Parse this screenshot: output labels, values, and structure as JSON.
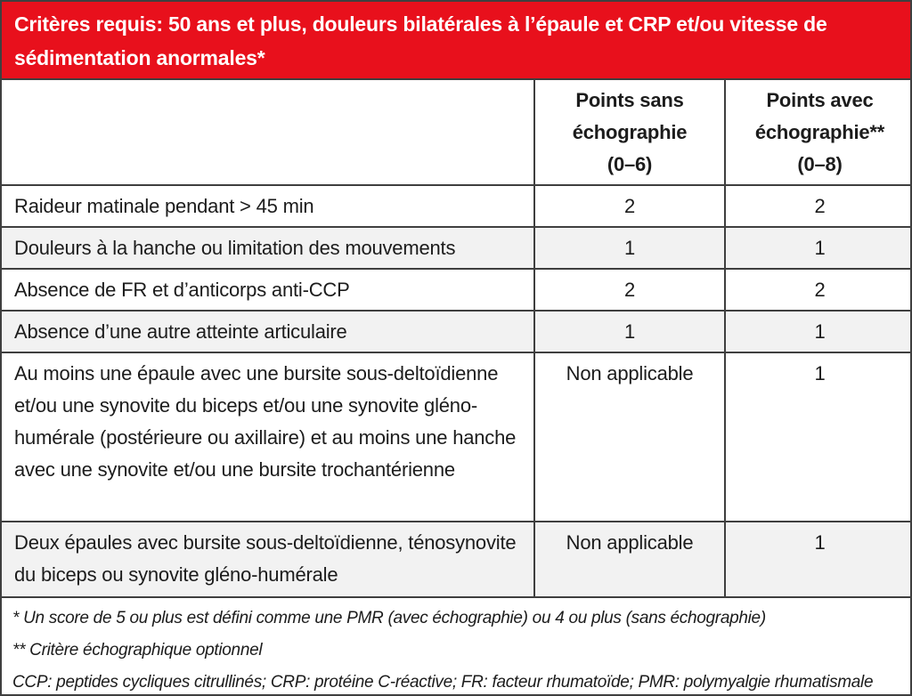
{
  "banner": {
    "title": "Critères requis: 50 ans et plus, douleurs bilatérales à l’épaule et CRP et/ou vitesse de sédimentation anormales*"
  },
  "table": {
    "columns": {
      "criteria_header": "",
      "sans": {
        "lines": [
          "Points sans",
          "échographie",
          "(0–6)"
        ]
      },
      "avec": {
        "lines": [
          "Points avec",
          "échographie**",
          "(0–8)"
        ]
      }
    },
    "rows": [
      {
        "label": "Raideur matinale pendant > 45 min",
        "sans": "2",
        "avec": "2"
      },
      {
        "label": "Douleurs à la hanche ou limitation des mouvements",
        "sans": "1",
        "avec": "1"
      },
      {
        "label": "Absence de FR et d’anticorps anti-CCP",
        "sans": "2",
        "avec": "2"
      },
      {
        "label": "Absence d’une autre atteinte articulaire",
        "sans": "1",
        "avec": "1"
      },
      {
        "label": "Au moins une épaule avec une bursite sous-deltoïdienne et/ou une synovite du biceps et/ou une synovite gléno-humérale (postérieure ou axillaire) et au moins une hanche avec une synovite et/ou une bursite trochantérienne",
        "sans": "Non applicable",
        "avec": "1"
      },
      {
        "label": "Deux épaules avec bursite sous-deltoïdienne, ténosynovite du biceps ou synovite gléno-humérale",
        "sans": "Non applicable",
        "avec": "1"
      }
    ]
  },
  "footnotes": [
    "* Un score de 5 ou plus est défini comme une PMR (avec échographie) ou 4 ou plus (sans échographie)",
    "** Critère échographique optionnel",
    "CCP: peptides cycliques citrullinés; CRP: protéine C-réactive; FR: facteur rhumatoïde; PMR: polymyalgie rhumatismale"
  ],
  "colors": {
    "banner_background": "#e8101c",
    "banner_text": "#ffffff",
    "border": "#3f3f3f",
    "stripe_row_background": "#f2f2f2",
    "body_text": "#1c1c1c"
  }
}
